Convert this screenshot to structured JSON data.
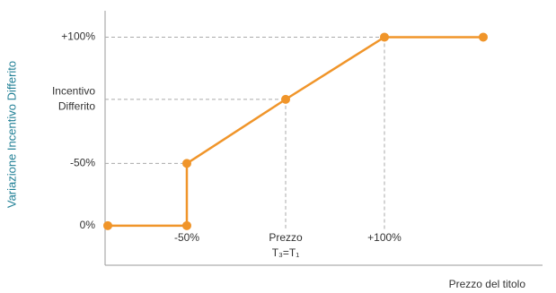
{
  "chart_data": {
    "type": "line",
    "y_axis_title": "Variazione Incentivo Differito",
    "x_axis_title": "Prezzo del titolo",
    "x": [
      0.2,
      1,
      1,
      2,
      3,
      4
    ],
    "series": [
      {
        "color": "#f0952a",
        "values": [
          0,
          0,
          33,
          67,
          100,
          100
        ]
      }
    ],
    "xlim": [
      0.2,
      4.6
    ],
    "ylim": [
      -21,
      114
    ],
    "xticks": [
      {
        "value": 1,
        "label": [
          "-50%"
        ]
      },
      {
        "value": 2,
        "label": [
          "Prezzo",
          "T₃=T₁"
        ]
      },
      {
        "value": 3,
        "label": [
          "+100%"
        ]
      }
    ],
    "yticks": [
      {
        "value": 0,
        "label": [
          "0%"
        ]
      },
      {
        "value": 33,
        "label": [
          "-50%"
        ]
      },
      {
        "value": 67,
        "label": [
          "Incentivo",
          "Differito"
        ]
      },
      {
        "value": 100,
        "label": [
          "+100%"
        ]
      }
    ],
    "guides": true
  }
}
